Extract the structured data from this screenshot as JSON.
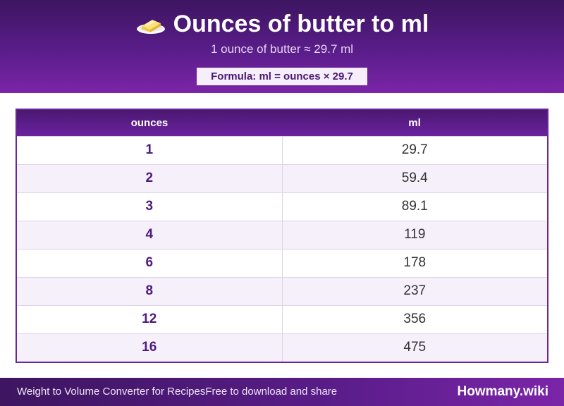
{
  "header": {
    "icon": "butter-icon",
    "title": "Ounces of butter to ml",
    "subtitle": "1 ounce of butter ≈ 29.7 ml",
    "formula": "Formula: ml = ounces × 29.7"
  },
  "table": {
    "columns": [
      "ounces",
      "ml"
    ],
    "rows": [
      [
        "1",
        "29.7"
      ],
      [
        "2",
        "59.4"
      ],
      [
        "3",
        "89.1"
      ],
      [
        "4",
        "119"
      ],
      [
        "6",
        "178"
      ],
      [
        "8",
        "237"
      ],
      [
        "12",
        "356"
      ],
      [
        "16",
        "475"
      ]
    ]
  },
  "footer": {
    "left_text_1": "Weight to Volume Converter for Recipes",
    "left_text_2": "Free to download and share",
    "brand": "Howmany.wiki"
  },
  "colors": {
    "brand_purple": "#5a1d8a",
    "accent_text": "#4f1c7c"
  }
}
